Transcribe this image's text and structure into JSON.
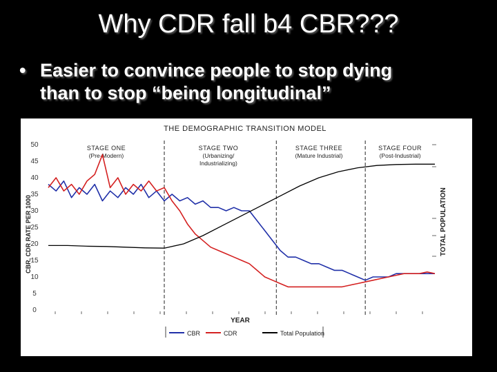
{
  "slide": {
    "title": "Why CDR fall b4 CBR???",
    "bullet_marker": "•",
    "bullet_text_line1": "Easier to convince people to stop dying",
    "bullet_text_line2": "than to stop “being longitudinal”"
  },
  "chart_data": {
    "type": "line",
    "title": "THE DEMOGRAPHIC TRANSITION MODEL",
    "xlabel": "YEAR",
    "ylabel": "CBR, CDR RATE PER 1000",
    "y2label": "TOTAL POPULATION",
    "ylim": [
      0,
      50
    ],
    "yticks": [
      0,
      5,
      10,
      15,
      20,
      25,
      30,
      35,
      40,
      45,
      50
    ],
    "xlim": [
      0,
      100
    ],
    "stage_dividers": [
      30,
      59,
      82
    ],
    "stages": [
      {
        "name": "STAGE ONE",
        "sub1": "(Pre-Modern)",
        "sub2": "",
        "x": 15
      },
      {
        "name": "STAGE TWO",
        "sub1": "(Urbanizing/",
        "sub2": "Industrializing)",
        "x": 44
      },
      {
        "name": "STAGE THREE",
        "sub1": "(Mature Industrial)",
        "sub2": "",
        "x": 70
      },
      {
        "name": "STAGE FOUR",
        "sub1": "(Post-Industrial)",
        "sub2": "",
        "x": 91
      }
    ],
    "legend": [
      {
        "name": "CBR",
        "color": "#1f2fa8"
      },
      {
        "name": "CDR",
        "color": "#d42020"
      },
      {
        "name": "Total Population",
        "color": "#000000"
      }
    ],
    "series": [
      {
        "name": "CBR",
        "color": "#1f2fa8",
        "x": [
          0,
          2,
          4,
          6,
          8,
          10,
          12,
          14,
          16,
          18,
          20,
          22,
          24,
          26,
          28,
          30,
          32,
          34,
          36,
          38,
          40,
          42,
          44,
          46,
          48,
          50,
          52,
          54,
          56,
          58,
          60,
          62,
          64,
          66,
          68,
          70,
          72,
          74,
          76,
          78,
          80,
          82,
          84,
          86,
          88,
          90,
          92,
          94,
          96,
          98,
          100
        ],
        "y": [
          38,
          36,
          39,
          34,
          37,
          35,
          38,
          33,
          36,
          34,
          37,
          35,
          38,
          34,
          36,
          33,
          35,
          33,
          34,
          32,
          33,
          31,
          31,
          30,
          31,
          30,
          30,
          27,
          24,
          21,
          18,
          16,
          16,
          15,
          14,
          14,
          13,
          12,
          12,
          11,
          10,
          9,
          10,
          10,
          10,
          11,
          11,
          11,
          11,
          11,
          11
        ]
      },
      {
        "name": "CDR",
        "color": "#d42020",
        "x": [
          0,
          2,
          4,
          6,
          8,
          10,
          12,
          14,
          16,
          18,
          20,
          22,
          24,
          26,
          28,
          30,
          32,
          34,
          36,
          38,
          40,
          42,
          44,
          46,
          48,
          50,
          52,
          54,
          56,
          58,
          60,
          62,
          64,
          66,
          68,
          70,
          72,
          74,
          76,
          78,
          80,
          82,
          84,
          86,
          88,
          90,
          92,
          94,
          96,
          98,
          100
        ],
        "y": [
          37,
          40,
          36,
          38,
          35,
          39,
          41,
          47,
          37,
          40,
          35,
          38,
          36,
          39,
          36,
          37,
          33,
          30,
          26,
          23,
          21,
          19,
          18,
          17,
          16,
          15,
          14,
          12,
          10,
          9,
          8,
          7,
          7,
          7,
          7,
          7,
          7,
          7,
          7,
          7.5,
          8,
          8.5,
          9,
          9.5,
          10,
          10.5,
          11,
          11,
          11,
          11.5,
          11
        ]
      },
      {
        "name": "Total Population",
        "color": "#000000",
        "x": [
          0,
          5,
          10,
          15,
          20,
          25,
          30,
          35,
          40,
          45,
          50,
          55,
          60,
          65,
          70,
          75,
          80,
          85,
          90,
          95,
          100
        ],
        "y": [
          19.5,
          19.5,
          19.3,
          19.2,
          19,
          18.8,
          18.7,
          20,
          22.5,
          25.5,
          28.5,
          31.5,
          34.5,
          37.5,
          40,
          41.8,
          43,
          43.7,
          44,
          44.1,
          44.1
        ]
      }
    ]
  }
}
